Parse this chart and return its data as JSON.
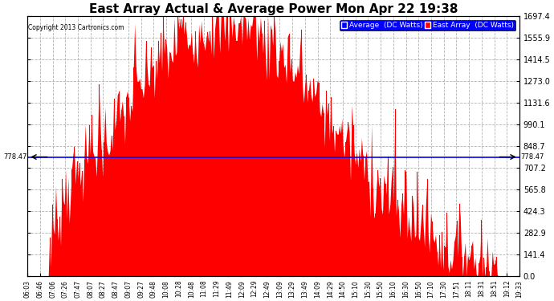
{
  "title": "East Array Actual & Average Power Mon Apr 22 19:38",
  "copyright": "Copyright 2013 Cartronics.com",
  "legend_average": "Average  (DC Watts)",
  "legend_east": "East Array  (DC Watts)",
  "ymax": 1697.4,
  "ymin": 0.0,
  "yticks": [
    0.0,
    141.4,
    282.9,
    424.3,
    565.8,
    707.2,
    848.7,
    990.1,
    1131.6,
    1273.0,
    1414.5,
    1555.9,
    1697.4
  ],
  "ytick_labels": [
    "0.0",
    "141.4",
    "282.9",
    "424.3",
    "565.8",
    "707.2",
    "848.7",
    "990.1",
    "1131.6",
    "1273.0",
    "1414.5",
    "1555.9",
    "1697.4"
  ],
  "hline_value": 778.47,
  "hline_label": "778.47",
  "bg_color": "#ffffff",
  "plot_bg_color": "#ffffff",
  "grid_color": "#aaaaaa",
  "fill_color": "#ff0000",
  "average_line_color": "#0000ff",
  "title_fontsize": 11,
  "xlabel_fontsize": 5.5,
  "ylabel_fontsize": 7,
  "n_points": 400,
  "x_labels": [
    "06:03",
    "06:46",
    "07:06",
    "07:26",
    "07:47",
    "08:07",
    "08:27",
    "08:47",
    "09:07",
    "09:27",
    "09:48",
    "10:08",
    "10:28",
    "10:48",
    "11:08",
    "11:29",
    "11:49",
    "12:09",
    "12:29",
    "12:49",
    "13:09",
    "13:29",
    "13:49",
    "14:09",
    "14:29",
    "14:50",
    "15:10",
    "15:30",
    "15:50",
    "16:10",
    "16:30",
    "16:50",
    "17:10",
    "17:30",
    "17:51",
    "18:11",
    "18:31",
    "18:51",
    "19:12",
    "19:33"
  ]
}
